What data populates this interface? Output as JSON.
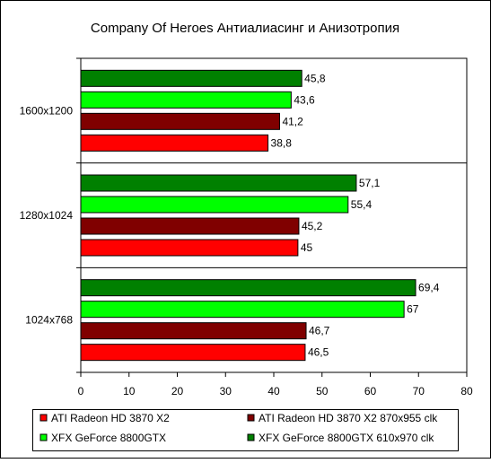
{
  "chart_data": {
    "type": "bar",
    "orientation": "horizontal",
    "title": "Company Of Heroes Антиалиасинг и Анизотропия",
    "categories": [
      "1600x1200",
      "1280x1024",
      "1024x768"
    ],
    "series": [
      {
        "name": "ATI Radeon HD 3870 X2",
        "color": "#ff0000",
        "values": [
          38.8,
          45,
          46.5
        ],
        "labels": [
          "38,8",
          "45",
          "46,5"
        ]
      },
      {
        "name": "ATI Radeon HD 3870 X2 870x955 clk",
        "color": "#800000",
        "values": [
          41.2,
          45.2,
          46.7
        ],
        "labels": [
          "41,2",
          "45,2",
          "46,7"
        ]
      },
      {
        "name": "XFX GeForce 8800GTX",
        "color": "#00ff00",
        "values": [
          43.6,
          55.4,
          67
        ],
        "labels": [
          "43,6",
          "55,4",
          "67"
        ]
      },
      {
        "name": "XFX GeForce 8800GTX 610x970 clk",
        "color": "#008000",
        "values": [
          45.8,
          57.1,
          69.4
        ],
        "labels": [
          "45,8",
          "57,1",
          "69,4"
        ]
      }
    ],
    "xlim": [
      0,
      80
    ],
    "xticks": [
      "0",
      "10",
      "20",
      "30",
      "40",
      "50",
      "60",
      "70",
      "80"
    ],
    "grid": false,
    "legend_position": "bottom"
  }
}
